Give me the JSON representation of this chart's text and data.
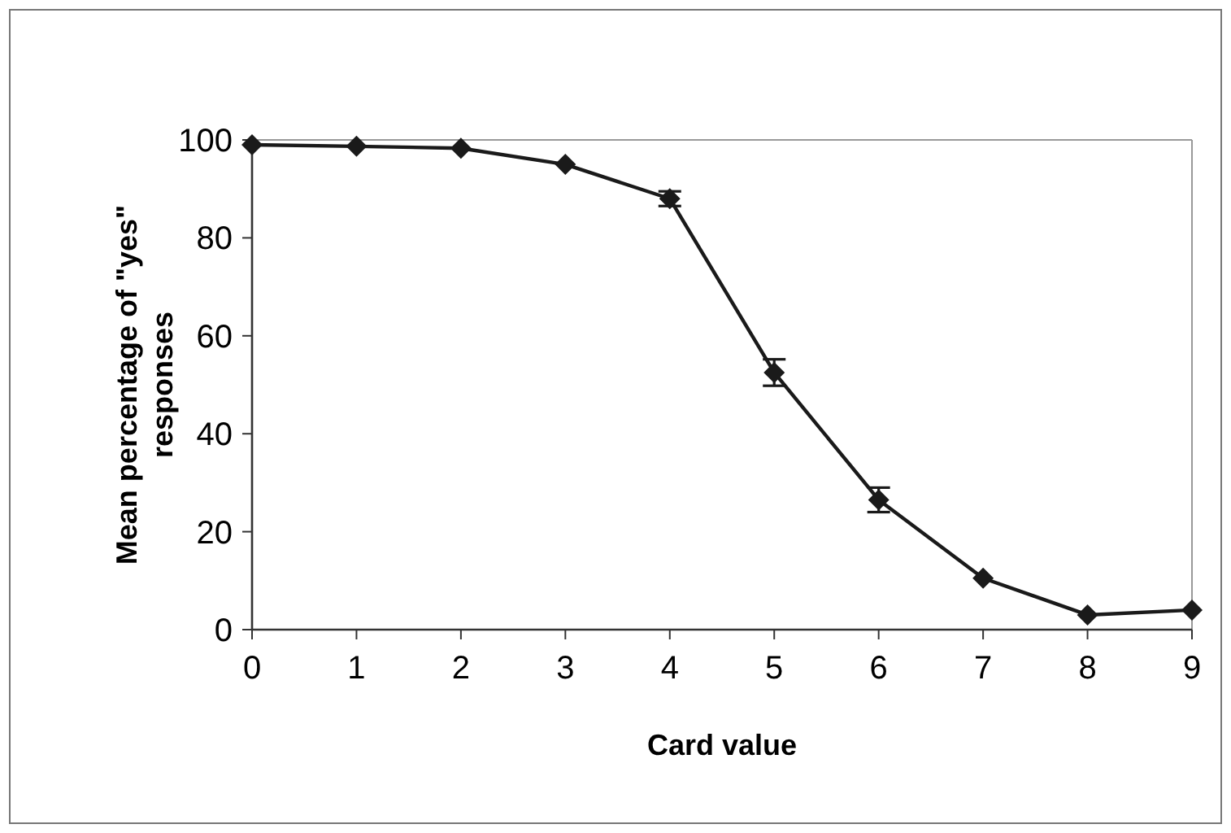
{
  "chart_data": {
    "type": "line",
    "xlabel": "Card value",
    "ylabel": "Mean percentage of \"yes\" responses",
    "x": [
      0,
      1,
      2,
      3,
      4,
      5,
      6,
      7,
      8,
      9
    ],
    "series": [
      {
        "color": "#1a1a1a",
        "values": [
          99,
          98.7,
          98.3,
          95,
          88,
          52.5,
          26.5,
          10.5,
          3,
          4
        ],
        "errors": [
          null,
          null,
          null,
          null,
          1.5,
          2.7,
          2.5,
          null,
          null,
          null
        ]
      }
    ],
    "xlim": [
      0,
      9
    ],
    "xticks": [
      0,
      1,
      2,
      3,
      4,
      5,
      6,
      7,
      8,
      9
    ],
    "ylim": [
      0,
      100
    ],
    "yticks": [
      0,
      20,
      40,
      60,
      80,
      100
    ],
    "marker": "diamond",
    "line_style": "solid",
    "grid": false
  }
}
